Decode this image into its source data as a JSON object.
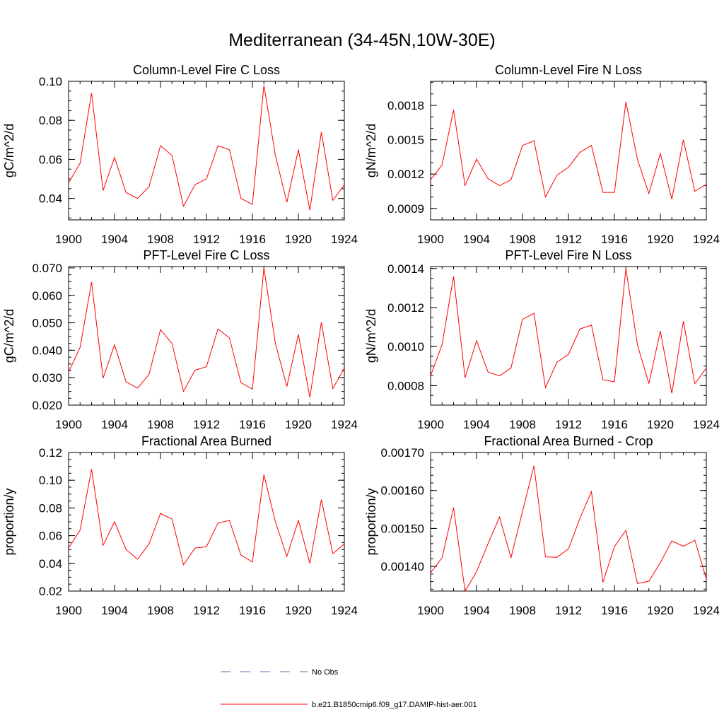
{
  "page_title": "Mediterranean (34-45N,10W-30E)",
  "line_color": "#ff0000",
  "obs_color": "#6a6ab0",
  "legend": {
    "obs_label": "No Obs",
    "model_label": "b.e21.B1850cmip6.f09_g17.DAMIP-hist-aer.001"
  },
  "chart_data": [
    {
      "type": "line",
      "title": "Column-Level Fire C Loss",
      "ylabel": "gC/m^2/d",
      "xlim": [
        1900,
        1924
      ],
      "ylim": [
        0.029,
        0.1
      ],
      "xticks": [
        1900,
        1904,
        1908,
        1912,
        1916,
        1920,
        1924
      ],
      "xtick_labels": [
        "1900",
        "1904",
        "1908",
        "1912",
        "1916",
        "1920",
        "1924"
      ],
      "yticks": [
        0.04,
        0.06,
        0.08,
        0.1
      ],
      "ytick_labels": [
        "0.04",
        "0.06",
        "0.08",
        "0.10"
      ],
      "yminor": 0.005,
      "x": [
        1900,
        1901,
        1902,
        1903,
        1904,
        1905,
        1906,
        1907,
        1908,
        1909,
        1910,
        1911,
        1912,
        1913,
        1914,
        1915,
        1916,
        1917,
        1918,
        1919,
        1920,
        1921,
        1922,
        1923,
        1924
      ],
      "series": [
        {
          "values": [
            0.048,
            0.058,
            0.094,
            0.044,
            0.061,
            0.043,
            0.04,
            0.046,
            0.067,
            0.062,
            0.036,
            0.047,
            0.05,
            0.067,
            0.065,
            0.04,
            0.037,
            0.098,
            0.062,
            0.038,
            0.065,
            0.034,
            0.074,
            0.039,
            0.047
          ]
        }
      ]
    },
    {
      "type": "line",
      "title": "Column-Level Fire N Loss",
      "ylabel": "gN/m^2/d",
      "xlim": [
        1900,
        1924
      ],
      "ylim": [
        0.0008,
        0.00201
      ],
      "xticks": [
        1900,
        1904,
        1908,
        1912,
        1916,
        1920,
        1924
      ],
      "xtick_labels": [
        "1900",
        "1904",
        "1908",
        "1912",
        "1916",
        "1920",
        "1924"
      ],
      "yticks": [
        0.0009,
        0.0012,
        0.0015,
        0.0018
      ],
      "ytick_labels": [
        "0.0009",
        "0.0012",
        "0.0015",
        "0.0018"
      ],
      "yminor": 0.0001,
      "x": [
        1900,
        1901,
        1902,
        1903,
        1904,
        1905,
        1906,
        1907,
        1908,
        1909,
        1910,
        1911,
        1912,
        1913,
        1914,
        1915,
        1916,
        1917,
        1918,
        1919,
        1920,
        1921,
        1922,
        1923,
        1924
      ],
      "series": [
        {
          "values": [
            0.00115,
            0.00128,
            0.00176,
            0.0011,
            0.00133,
            0.00116,
            0.0011,
            0.00115,
            0.00145,
            0.00149,
            0.001,
            0.00119,
            0.00126,
            0.00139,
            0.00145,
            0.00104,
            0.00104,
            0.00183,
            0.00133,
            0.00103,
            0.00138,
            0.00098,
            0.0015,
            0.00105,
            0.00111
          ]
        }
      ]
    },
    {
      "type": "line",
      "title": "PFT-Level Fire C Loss",
      "ylabel": "gC/m^2/d",
      "xlim": [
        1900,
        1924
      ],
      "ylim": [
        0.02,
        0.0705
      ],
      "xticks": [
        1900,
        1904,
        1908,
        1912,
        1916,
        1920,
        1924
      ],
      "xtick_labels": [
        "1900",
        "1904",
        "1908",
        "1912",
        "1916",
        "1920",
        "1924"
      ],
      "yticks": [
        0.02,
        0.03,
        0.04,
        0.05,
        0.06,
        0.07
      ],
      "ytick_labels": [
        "0.020",
        "0.030",
        "0.040",
        "0.050",
        "0.060",
        "0.070"
      ],
      "yminor": 0.0025,
      "x": [
        1900,
        1901,
        1902,
        1903,
        1904,
        1905,
        1906,
        1907,
        1908,
        1909,
        1910,
        1911,
        1912,
        1913,
        1914,
        1915,
        1916,
        1917,
        1918,
        1919,
        1920,
        1921,
        1922,
        1923,
        1924
      ],
      "series": [
        {
          "values": [
            0.032,
            0.041,
            0.0648,
            0.0298,
            0.042,
            0.0285,
            0.0262,
            0.0312,
            0.0475,
            0.0425,
            0.025,
            0.0327,
            0.034,
            0.0477,
            0.0445,
            0.0282,
            0.0258,
            0.07,
            0.0425,
            0.0268,
            0.0458,
            0.0228,
            0.0502,
            0.026,
            0.0335
          ]
        }
      ]
    },
    {
      "type": "line",
      "title": "PFT-Level Fire N Loss",
      "ylabel": "gN/m^2/d",
      "xlim": [
        1900,
        1924
      ],
      "ylim": [
        0.0007,
        0.00141
      ],
      "xticks": [
        1900,
        1904,
        1908,
        1912,
        1916,
        1920,
        1924
      ],
      "xtick_labels": [
        "1900",
        "1904",
        "1908",
        "1912",
        "1916",
        "1920",
        "1924"
      ],
      "yticks": [
        0.0008,
        0.001,
        0.0012,
        0.0014
      ],
      "ytick_labels": [
        "0.0008",
        "0.0010",
        "0.0012",
        "0.0014"
      ],
      "yminor": 5e-05,
      "x": [
        1900,
        1901,
        1902,
        1903,
        1904,
        1905,
        1906,
        1907,
        1908,
        1909,
        1910,
        1911,
        1912,
        1913,
        1914,
        1915,
        1916,
        1917,
        1918,
        1919,
        1920,
        1921,
        1922,
        1923,
        1924
      ],
      "series": [
        {
          "values": [
            0.00085,
            0.00101,
            0.00136,
            0.00084,
            0.00103,
            0.00087,
            0.00085,
            0.00089,
            0.00114,
            0.00117,
            0.00079,
            0.00092,
            0.00096,
            0.00109,
            0.00111,
            0.00083,
            0.00082,
            0.0014,
            0.00101,
            0.00081,
            0.00108,
            0.00076,
            0.00113,
            0.00081,
            0.00089
          ]
        }
      ]
    },
    {
      "type": "line",
      "title": "Fractional Area Burned",
      "ylabel": "proportion/y",
      "xlim": [
        1900,
        1924
      ],
      "ylim": [
        0.02,
        0.12
      ],
      "xticks": [
        1900,
        1904,
        1908,
        1912,
        1916,
        1920,
        1924
      ],
      "xtick_labels": [
        "1900",
        "1904",
        "1908",
        "1912",
        "1916",
        "1920",
        "1924"
      ],
      "yticks": [
        0.02,
        0.04,
        0.06,
        0.08,
        0.1,
        0.12
      ],
      "ytick_labels": [
        "0.02",
        "0.04",
        "0.06",
        "0.08",
        "0.10",
        "0.12"
      ],
      "yminor": 0.005,
      "x": [
        1900,
        1901,
        1902,
        1903,
        1904,
        1905,
        1906,
        1907,
        1908,
        1909,
        1910,
        1911,
        1912,
        1913,
        1914,
        1915,
        1916,
        1917,
        1918,
        1919,
        1920,
        1921,
        1922,
        1923,
        1924
      ],
      "series": [
        {
          "values": [
            0.051,
            0.064,
            0.108,
            0.053,
            0.07,
            0.05,
            0.043,
            0.054,
            0.076,
            0.072,
            0.039,
            0.051,
            0.052,
            0.069,
            0.071,
            0.046,
            0.041,
            0.104,
            0.07,
            0.045,
            0.071,
            0.04,
            0.086,
            0.047,
            0.054
          ]
        }
      ]
    },
    {
      "type": "line",
      "title": "Fractional Area Burned - Crop",
      "ylabel": "proportion/y",
      "xlim": [
        1900,
        1924
      ],
      "ylim": [
        0.001335,
        0.0017
      ],
      "xticks": [
        1900,
        1904,
        1908,
        1912,
        1916,
        1920,
        1924
      ],
      "xtick_labels": [
        "1900",
        "1904",
        "1908",
        "1912",
        "1916",
        "1920",
        "1924"
      ],
      "yticks": [
        0.0014,
        0.0015,
        0.0016,
        0.0017
      ],
      "ytick_labels": [
        "0.00140",
        "0.00150",
        "0.00160",
        "0.00170"
      ],
      "yminor": 2e-05,
      "x": [
        1900,
        1901,
        1902,
        1903,
        1904,
        1905,
        1906,
        1907,
        1908,
        1909,
        1910,
        1911,
        1912,
        1913,
        1914,
        1915,
        1916,
        1917,
        1918,
        1919,
        1920,
        1921,
        1922,
        1923,
        1924
      ],
      "series": [
        {
          "values": [
            0.001383,
            0.001423,
            0.001555,
            0.001335,
            0.001386,
            0.00146,
            0.00153,
            0.001423,
            0.001545,
            0.001665,
            0.001425,
            0.001424,
            0.001446,
            0.001527,
            0.001597,
            0.001358,
            0.001452,
            0.001495,
            0.001355,
            0.001361,
            0.00141,
            0.001467,
            0.001453,
            0.001469,
            0.001367
          ]
        }
      ]
    }
  ]
}
